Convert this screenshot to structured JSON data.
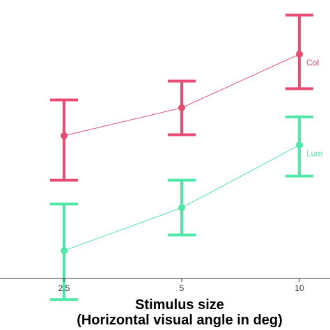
{
  "chart_data": {
    "type": "line",
    "title": "",
    "xlabel": [
      "Stimulus size",
      "(Horizontal visual angle in deg)"
    ],
    "ylabel": "",
    "categories": [
      "2.5",
      "5",
      "10"
    ],
    "y_range": [
      0,
      1
    ],
    "grid": false,
    "legend": "none (series labelled at line ends)",
    "series": [
      {
        "name": "Col",
        "color": "#e94b73",
        "values": [
          0.567,
          0.656,
          0.827
        ],
        "lower": [
          0.425,
          0.57,
          0.717
        ],
        "upper": [
          0.681,
          0.741,
          0.952
        ]
      },
      {
        "name": "Lum",
        "color": "#4ee8a6",
        "values": [
          0.2,
          0.337,
          0.537
        ],
        "lower": [
          0.044,
          0.25,
          0.438
        ],
        "upper": [
          0.349,
          0.425,
          0.627
        ]
      }
    ]
  }
}
